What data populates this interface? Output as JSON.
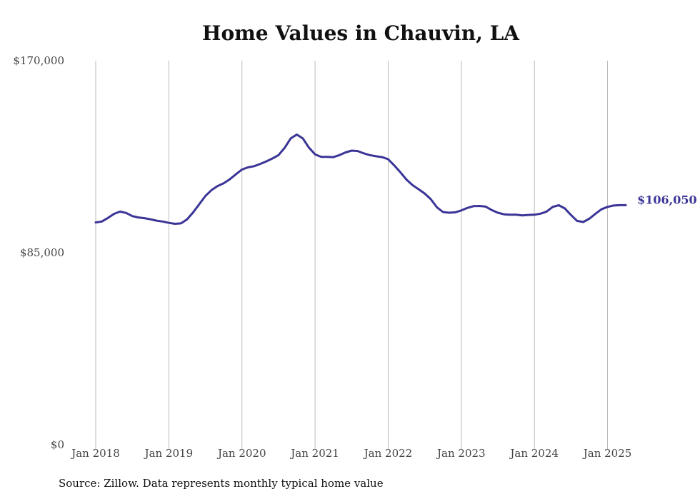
{
  "title": "Home Values in Chauvin, LA",
  "source_note": "Source: Zillow. Data represents monthly typical home value",
  "colors": {
    "line": "#3a3596",
    "grid": "#bbbbbb",
    "end_label": "#3a3596"
  },
  "chart_data": {
    "type": "line",
    "title": "Home Values in Chauvin, LA",
    "xlabel": "",
    "ylabel": "",
    "ylim": [
      0,
      170000
    ],
    "y_ticks": [
      {
        "value": 0,
        "label": "$0"
      },
      {
        "value": 85000,
        "label": "$85,000"
      },
      {
        "value": 170000,
        "label": "$170,000"
      }
    ],
    "x_ticks": [
      "Jan 2018",
      "Jan 2019",
      "Jan 2020",
      "Jan 2021",
      "Jan 2022",
      "Jan 2023",
      "Jan 2024",
      "Jan 2025"
    ],
    "grid": "vertical",
    "end_label": "$106,050",
    "series": [
      {
        "x": [
          "2018-01",
          "2018-02",
          "2018-03",
          "2018-04",
          "2018-05",
          "2018-06",
          "2018-07",
          "2018-08",
          "2018-09",
          "2018-10",
          "2018-11",
          "2018-12",
          "2019-01",
          "2019-02",
          "2019-03",
          "2019-04",
          "2019-05",
          "2019-06",
          "2019-07",
          "2019-08",
          "2019-09",
          "2019-10",
          "2019-11",
          "2019-12",
          "2020-01",
          "2020-02",
          "2020-03",
          "2020-04",
          "2020-05",
          "2020-06",
          "2020-07",
          "2020-08",
          "2020-09",
          "2020-10",
          "2020-11",
          "2020-12",
          "2021-01",
          "2021-02",
          "2021-03",
          "2021-04",
          "2021-05",
          "2021-06",
          "2021-07",
          "2021-08",
          "2021-09",
          "2021-10",
          "2021-11",
          "2021-12",
          "2022-01",
          "2022-02",
          "2022-03",
          "2022-04",
          "2022-05",
          "2022-06",
          "2022-07",
          "2022-08",
          "2022-09",
          "2022-10",
          "2022-11",
          "2022-12",
          "2023-01",
          "2023-02",
          "2023-03",
          "2023-04",
          "2023-05",
          "2023-06",
          "2023-07",
          "2023-08",
          "2023-09",
          "2023-10",
          "2023-11",
          "2023-12",
          "2024-01",
          "2024-02",
          "2024-03",
          "2024-04",
          "2024-05",
          "2024-06",
          "2024-07",
          "2024-08",
          "2024-09",
          "2024-10",
          "2024-11",
          "2024-12",
          "2025-01",
          "2025-02",
          "2025-03",
          "2025-04"
        ],
        "values": [
          98400,
          98800,
          100400,
          102200,
          103200,
          102600,
          101200,
          100600,
          100300,
          99800,
          99200,
          98800,
          98200,
          97800,
          98000,
          99800,
          102900,
          106500,
          110100,
          112700,
          114500,
          115700,
          117500,
          119700,
          121800,
          122800,
          123300,
          124300,
          125400,
          126700,
          128200,
          131400,
          135600,
          137300,
          135600,
          131500,
          128500,
          127400,
          127400,
          127300,
          128200,
          129400,
          130200,
          130000,
          129000,
          128200,
          127700,
          127300,
          126400,
          123600,
          120600,
          117400,
          114900,
          113100,
          111200,
          108700,
          105100,
          103000,
          102700,
          102900,
          103700,
          104800,
          105600,
          105700,
          105400,
          103900,
          102700,
          102000,
          101800,
          101800,
          101500,
          101700,
          101800,
          102300,
          103200,
          105300,
          106000,
          104600,
          101700,
          99100,
          98600,
          100000,
          102200,
          104200,
          105300,
          105900,
          106050,
          106050
        ]
      }
    ]
  }
}
